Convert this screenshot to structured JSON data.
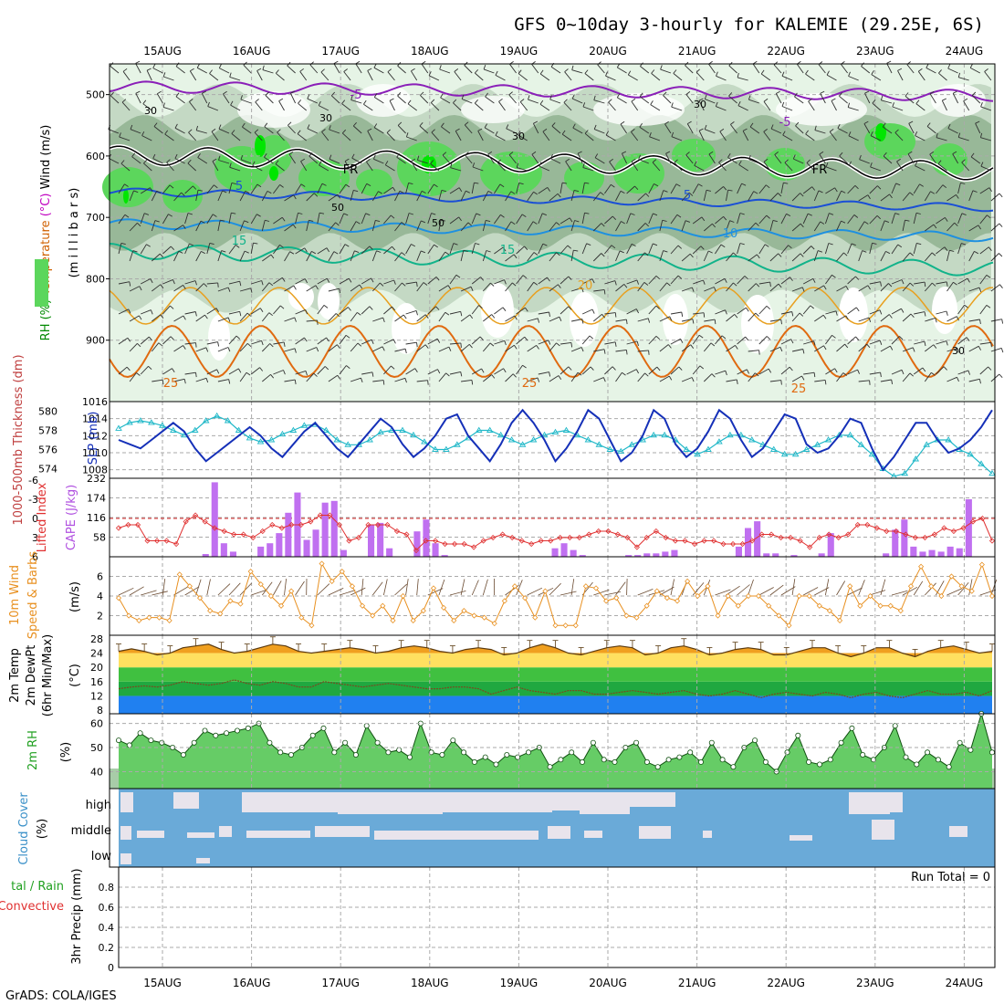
{
  "title": "GFS 0~10day 3-hourly for KALEMIE (29.25E, 6S)",
  "credit": "GrADS: COLA/IGES",
  "dates": [
    "15AUG",
    "16AUG",
    "17AUG",
    "18AUG",
    "19AUG",
    "20AUG",
    "21AUG",
    "22AUG",
    "23AUG",
    "24AUG"
  ],
  "colors": {
    "rh_light": "#e6f4e6",
    "rh_mid": "#c4d9c4",
    "rh_dark": "#98b898",
    "rh_green": "#5cd65c",
    "rh_bright": "#00e600",
    "temp_minus5": "#8a1fb8",
    "temp_5": "#1a4fd6",
    "temp_10": "#1e90e0",
    "temp_15": "#11b38a",
    "temp_20": "#e8a020",
    "temp_25": "#e06a10",
    "freezing": "#000000",
    "slp": "#1530b8",
    "thickness": "#20b8c8",
    "cape": "#c070f0",
    "lifted": "#e03030",
    "wind10m": "#e89020",
    "temp2m_fill": "#f0a020",
    "temp2m_band": "#ffe060",
    "dew_band1": "#40c040",
    "dew_band2": "#20a840",
    "dew_band3": "#2080f0",
    "rh2m": "#40c040",
    "cloud": "#6aaad8",
    "cloud_gap": "#e8e4ec"
  },
  "panels": {
    "upper_air": {
      "ylabel": "(m i l l i b a r s)",
      "side_labels": [
        {
          "text": "Wind (m/s)",
          "color": "#000000"
        },
        {
          "text": "Temperature",
          "color": "#d06000"
        },
        {
          "text": "(°C)",
          "color": "#c000c0"
        },
        {
          "text": "RH (%)",
          "color": "#008800"
        }
      ],
      "yticks": [
        "500",
        "600",
        "700",
        "800",
        "900"
      ],
      "contour_labels": [
        "-5",
        "-5",
        "FR",
        "FR",
        "5",
        "5",
        "10",
        "15",
        "15",
        "20",
        "25",
        "25",
        "25"
      ],
      "rh_labels": [
        "30",
        "30",
        "30",
        "30",
        "50",
        "50",
        "30"
      ]
    },
    "pressure": {
      "left_label": "1000-500mb Thickness (dm)",
      "right_label": "SLP (mb)",
      "yticks_left": [
        "580",
        "578",
        "576",
        "574"
      ],
      "yticks_right": [
        "1016",
        "1014",
        "1012",
        "1010",
        "1008"
      ]
    },
    "stability": {
      "left_label": "Lifted Index",
      "right_label": "CAPE (J/kg)",
      "yticks_left": [
        "-6",
        "-3",
        "0",
        "3",
        "6"
      ],
      "yticks_right": [
        "232",
        "174",
        "116",
        "58"
      ]
    },
    "wind10m": {
      "label1": "10m Wind",
      "label2": "Speed & Barbs",
      "unit": "(m/s)",
      "yticks": [
        "6",
        "4",
        "2"
      ]
    },
    "temp2m": {
      "label1": "2m Temp",
      "label2": "2m DewPt",
      "label3": "(6hr Min/Max)",
      "unit": "(°C)",
      "yticks": [
        "28",
        "24",
        "20",
        "16",
        "12",
        "8"
      ]
    },
    "rh2m": {
      "label": "2m RH",
      "unit": "(%)",
      "yticks": [
        "60",
        "50",
        "40"
      ]
    },
    "cloud": {
      "label": "Cloud Cover",
      "unit": "(%)",
      "levels": [
        "high",
        "middle",
        "low"
      ]
    },
    "precip": {
      "label1": "tal / Rain",
      "label2": "Convective",
      "label3": "3hr Precip (mm)",
      "yticks": [
        "0.8",
        "0.6",
        "0.4",
        "0.2",
        "0"
      ],
      "run_total": "Run Total = 0"
    }
  },
  "chart_data": [
    {
      "type": "heatmap",
      "name": "upper-air cross section",
      "yrange": [
        1000,
        450
      ],
      "isotherms": [
        -5,
        0,
        5,
        10,
        15,
        20,
        25
      ]
    },
    {
      "type": "line",
      "x": [
        0,
        1,
        2,
        3,
        4,
        5,
        6,
        7,
        8,
        9,
        10,
        11,
        12,
        13,
        14,
        15,
        16,
        17,
        18,
        19,
        20,
        21,
        22,
        23,
        24,
        25,
        26,
        27,
        28,
        29,
        30,
        31,
        32,
        33,
        34,
        35,
        36,
        37,
        38,
        39,
        40,
        41,
        42,
        43,
        44,
        45,
        46,
        47,
        48,
        49,
        50,
        51,
        52,
        53,
        54,
        55,
        56,
        57,
        58,
        59,
        60,
        61,
        62,
        63,
        64,
        65,
        66,
        67,
        68,
        69,
        70,
        71,
        72,
        73,
        74,
        75,
        76,
        77,
        78,
        79,
        80
      ],
      "series": [
        {
          "name": "SLP (mb)",
          "values": [
            1011.5,
            1011.0,
            1010.5,
            1011.5,
            1012.5,
            1013.5,
            1012.5,
            1010.5,
            1009.0,
            1010.0,
            1011.0,
            1012.0,
            1013.0,
            1012.0,
            1010.5,
            1009.5,
            1011.0,
            1012.5,
            1013.5,
            1012.0,
            1010.5,
            1009.5,
            1011.0,
            1012.5,
            1014.0,
            1013.0,
            1011.0,
            1009.5,
            1010.5,
            1012.0,
            1014.0,
            1014.5,
            1012.0,
            1010.5,
            1009.0,
            1011.0,
            1013.5,
            1015.0,
            1013.5,
            1011.5,
            1009.0,
            1010.5,
            1012.5,
            1015.0,
            1014.0,
            1011.5,
            1009.0,
            1010.0,
            1012.0,
            1015.0,
            1014.0,
            1011.0,
            1009.5,
            1010.5,
            1012.5,
            1015.0,
            1014.0,
            1011.5,
            1009.5,
            1010.5,
            1012.5,
            1014.5,
            1014.0,
            1011.0,
            1010.0,
            1010.5,
            1012.0,
            1014.0,
            1013.5,
            1010.5,
            1008.0,
            1009.5,
            1011.5,
            1013.5,
            1013.5,
            1011.5,
            1010.0,
            1010.5,
            1011.5,
            1013.0,
            1015.0
          ]
        },
        {
          "name": "1000-500mb Thickness (dm)",
          "values": [
            578.2,
            578.8,
            579.0,
            578.8,
            578.5,
            578.0,
            577.5,
            578.0,
            579.0,
            579.5,
            579.0,
            578.0,
            577.2,
            576.8,
            577.0,
            577.6,
            578.0,
            578.5,
            578.6,
            578.0,
            577.0,
            576.5,
            576.5,
            577.0,
            577.8,
            578.0,
            578.0,
            577.5,
            576.8,
            576.0,
            576.0,
            576.5,
            577.2,
            578.0,
            578.0,
            577.5,
            577.0,
            576.5,
            577.0,
            577.5,
            577.8,
            578.0,
            577.5,
            577.0,
            576.5,
            576.0,
            575.8,
            576.5,
            577.0,
            577.5,
            577.5,
            577.0,
            576.0,
            575.5,
            576.0,
            576.8,
            577.5,
            577.5,
            577.0,
            576.5,
            576.0,
            575.5,
            575.5,
            576.0,
            576.5,
            577.0,
            577.5,
            577.5,
            576.5,
            575.5,
            574.0,
            573.2,
            573.5,
            575.0,
            576.5,
            577.0,
            577.0,
            576.0,
            575.5,
            574.5,
            573.5
          ]
        }
      ],
      "ylim_left": [
        573,
        581
      ],
      "ylim_right": [
        1007,
        1016
      ]
    },
    {
      "type": "bar",
      "series": [
        {
          "name": "CAPE (J/kg)",
          "values": [
            0,
            0,
            0,
            0,
            0,
            0,
            0,
            0,
            0,
            8,
            220,
            40,
            15,
            0,
            0,
            30,
            40,
            70,
            130,
            190,
            50,
            80,
            160,
            165,
            20,
            0,
            0,
            95,
            100,
            25,
            0,
            0,
            75,
            110,
            40,
            5,
            0,
            0,
            0,
            0,
            0,
            0,
            0,
            0,
            0,
            0,
            0,
            25,
            40,
            20,
            5,
            0,
            0,
            0,
            0,
            5,
            5,
            10,
            10,
            15,
            20,
            0,
            0,
            0,
            0,
            0,
            0,
            30,
            85,
            105,
            10,
            10,
            0,
            5,
            0,
            0,
            10,
            70,
            0,
            0,
            0,
            0,
            0,
            10,
            80,
            110,
            30,
            15,
            20,
            15,
            30,
            25,
            170,
            0,
            0
          ]
        },
        {
          "name": "Lifted Index",
          "values": [
            1.5,
            1.0,
            1.0,
            3.5,
            3.5,
            3.5,
            4.0,
            0.5,
            -0.5,
            0.5,
            1.5,
            2.0,
            2.5,
            2.5,
            3.0,
            2.0,
            1.0,
            1.5,
            1.0,
            1.0,
            0.5,
            -0.5,
            -0.5,
            1.0,
            3.5,
            3.0,
            1.0,
            1.0,
            1.0,
            2.0,
            2.5,
            5.0,
            3.5,
            3.5,
            4.0,
            4.0,
            4.0,
            4.5,
            3.5,
            3.0,
            2.5,
            3.0,
            3.5,
            4.0,
            3.5,
            3.5,
            3.0,
            3.0,
            3.0,
            2.5,
            2.0,
            2.0,
            2.5,
            3.0,
            4.5,
            3.0,
            2.0,
            3.0,
            3.5,
            3.5,
            4.0,
            3.5,
            3.5,
            4.0,
            4.0,
            4.0,
            3.5,
            2.5,
            2.5,
            3.0,
            3.0,
            3.5,
            4.5,
            3.0,
            2.5,
            3.0,
            2.5,
            1.0,
            1.0,
            1.5,
            2.0,
            2.0,
            2.5,
            3.0,
            3.0,
            2.5,
            1.5,
            2.0,
            1.5,
            0.5,
            0.0,
            3.5
          ]
        }
      ],
      "ylim_left": [
        6,
        -7
      ],
      "ylim_right": [
        0,
        232
      ]
    },
    {
      "type": "line",
      "series": [
        {
          "name": "10m Wind Speed",
          "values": [
            3.8,
            2.0,
            1.5,
            1.8,
            1.8,
            1.5,
            6.2,
            5.0,
            3.8,
            2.5,
            2.2,
            3.5,
            3.2,
            6.5,
            5.2,
            4.0,
            3.0,
            4.5,
            1.8,
            1.0,
            7.3,
            5.5,
            6.5,
            5.0,
            3.0,
            2.0,
            3.0,
            1.5,
            4.0,
            1.5,
            2.5,
            4.8,
            2.8,
            1.5,
            2.5,
            2.0,
            1.8,
            1.2,
            3.5,
            5.0,
            3.8,
            1.8,
            4.5,
            1.0,
            1.0,
            1.0,
            5.0,
            4.8,
            3.5,
            3.8,
            2.0,
            1.8,
            3.0,
            4.5,
            3.8,
            3.5,
            5.5,
            4.0,
            5.0,
            2.0,
            4.0,
            3.0,
            4.0,
            4.0,
            3.0,
            2.0,
            1.0,
            4.0,
            4.0,
            3.0,
            2.5,
            1.5,
            5.0,
            3.0,
            4.0,
            3.0,
            3.0,
            2.5,
            5.0,
            7.0,
            5.0,
            4.0,
            6.0,
            5.0,
            4.5,
            7.2,
            4.0
          ]
        }
      ],
      "ylim": [
        0,
        8
      ]
    },
    {
      "type": "area",
      "series": [
        {
          "name": "2m Temp",
          "values": [
            24.5,
            25.2,
            24.5,
            23.5,
            24.0,
            25.5,
            26.0,
            26.5,
            25.0,
            24.0,
            24.5,
            25.5,
            26.5,
            26.0,
            24.5,
            24.0,
            24.5,
            25.0,
            25.5,
            25.0,
            24.0,
            24.5,
            25.5,
            26.0,
            25.5,
            24.5,
            24.0,
            25.0,
            25.5,
            25.0,
            23.5,
            24.0,
            25.5,
            26.5,
            25.5,
            24.0,
            23.5,
            24.5,
            25.5,
            26.0,
            25.5,
            23.5,
            24.0,
            25.5,
            26.0,
            25.0,
            23.5,
            24.0,
            25.0,
            25.5,
            25.0,
            23.5,
            23.5,
            24.5,
            25.5,
            25.5,
            24.0,
            23.0,
            24.0,
            25.5,
            25.5,
            24.0,
            23.0,
            24.5,
            25.5,
            26.0,
            25.0,
            24.0,
            24.5
          ]
        },
        {
          "name": "2m DewPt",
          "values": [
            14.0,
            14.5,
            14.8,
            14.5,
            15.0,
            16.0,
            15.5,
            15.0,
            15.5,
            16.5,
            15.5,
            15.0,
            16.0,
            15.5,
            14.5,
            14.5,
            16.0,
            15.5,
            15.0,
            14.5,
            15.0,
            15.5,
            15.0,
            14.5,
            14.0,
            14.0,
            14.5,
            14.5,
            14.0,
            12.5,
            13.5,
            14.5,
            13.5,
            13.0,
            12.5,
            13.5,
            13.5,
            12.5,
            12.5,
            13.0,
            13.5,
            13.0,
            12.5,
            13.0,
            13.5,
            12.5,
            12.0,
            12.5,
            13.5,
            12.5,
            11.5,
            12.5,
            13.0,
            12.5,
            12.0,
            13.0,
            12.5,
            11.5,
            12.5,
            13.0,
            12.0,
            11.5,
            12.5,
            13.5,
            12.5,
            12.5,
            13.0,
            12.0,
            13.5
          ]
        }
      ],
      "ylim": [
        7,
        29
      ]
    },
    {
      "type": "area",
      "series": [
        {
          "name": "2m RH",
          "values": [
            53,
            51,
            56,
            53,
            52,
            50,
            47,
            52,
            57,
            55,
            56,
            57,
            58,
            60,
            52,
            48,
            47,
            50,
            55,
            58,
            48,
            52,
            47,
            59,
            52,
            48,
            49,
            46,
            60,
            48,
            47,
            53,
            48,
            44,
            46,
            43,
            47,
            46,
            48,
            50,
            42,
            45,
            48,
            44,
            52,
            45,
            44,
            50,
            52,
            44,
            42,
            45,
            46,
            48,
            44,
            52,
            45,
            42,
            50,
            53,
            44,
            40,
            48,
            55,
            44,
            43,
            45,
            52,
            58,
            47,
            45,
            50,
            59,
            46,
            43,
            48,
            45,
            42,
            52,
            49,
            64,
            48
          ]
        }
      ],
      "ylim": [
        33,
        64
      ]
    },
    {
      "type": "bar",
      "name": "cloud cover",
      "levels": [
        "high",
        "middle",
        "low"
      ]
    },
    {
      "type": "bar",
      "name": "3hr precip",
      "series": [
        {
          "name": "3hr Precip (mm)",
          "values": []
        }
      ],
      "ylim": [
        0,
        1.0
      ]
    }
  ]
}
